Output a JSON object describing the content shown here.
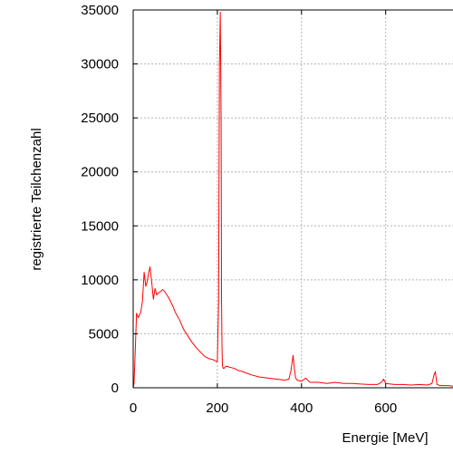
{
  "chart_data": {
    "type": "line",
    "title": "",
    "xlabel": "Energie [MeV]",
    "ylabel": "registrierte Teilchenzahl",
    "xlim": [
      0,
      760
    ],
    "ylim": [
      0,
      35000
    ],
    "x_ticks": [
      0,
      200,
      400,
      600
    ],
    "y_ticks": [
      0,
      5000,
      10000,
      15000,
      20000,
      25000,
      30000,
      35000
    ],
    "grid": true,
    "legend": "none",
    "series": [
      {
        "color": "#ff0000",
        "x": [
          0,
          2,
          5,
          8,
          12,
          18,
          22,
          26,
          30,
          33,
          36,
          40,
          44,
          48,
          52,
          56,
          60,
          65,
          70,
          75,
          80,
          85,
          90,
          95,
          100,
          110,
          120,
          130,
          140,
          150,
          160,
          170,
          180,
          190,
          200,
          203,
          205,
          207,
          209,
          210,
          211,
          212,
          213,
          214,
          216,
          220,
          230,
          240,
          250,
          260,
          280,
          300,
          320,
          340,
          360,
          370,
          375,
          380,
          383,
          386,
          390,
          400,
          410,
          420,
          440,
          460,
          480,
          500,
          520,
          540,
          560,
          580,
          590,
          595,
          600,
          620,
          640,
          660,
          680,
          700,
          710,
          715,
          718,
          722,
          730,
          740,
          750,
          760
        ],
        "y": [
          0,
          400,
          3500,
          6900,
          6500,
          7000,
          8000,
          10700,
          9400,
          9800,
          10500,
          11200,
          9800,
          8200,
          9200,
          8600,
          8800,
          8900,
          9100,
          8900,
          8600,
          8300,
          7900,
          7500,
          7000,
          6300,
          5400,
          4800,
          4200,
          3700,
          3300,
          2900,
          2700,
          2600,
          2400,
          8000,
          30000,
          34800,
          25000,
          8000,
          4000,
          2100,
          1900,
          1800,
          1800,
          2000,
          1900,
          1800,
          1600,
          1500,
          1200,
          1000,
          900,
          800,
          700,
          800,
          1600,
          3000,
          1800,
          900,
          700,
          600,
          900,
          500,
          500,
          400,
          500,
          400,
          400,
          350,
          300,
          300,
          500,
          800,
          400,
          300,
          300,
          250,
          300,
          250,
          400,
          1200,
          1500,
          300,
          200,
          200,
          200,
          150
        ]
      }
    ]
  }
}
